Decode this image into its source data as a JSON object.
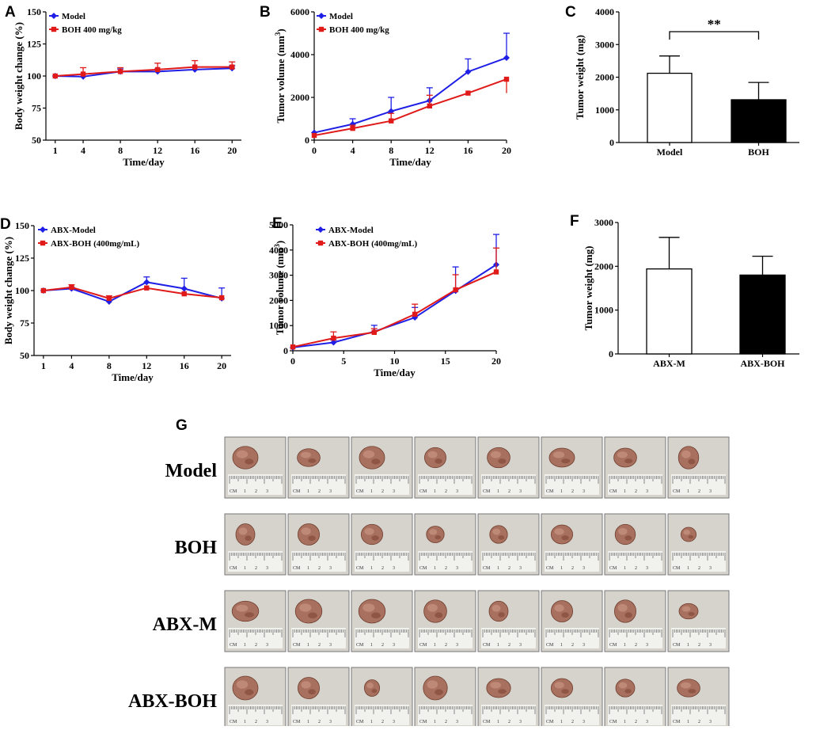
{
  "colors": {
    "model": "#1f1fe6",
    "treat": "#e01919",
    "axis": "#000000",
    "bar_model": "#ffffff",
    "bar_treat": "#000000",
    "photo_bg": "#d6d3cc",
    "photo_border": "#777777",
    "tumor": "#a8705e",
    "ruler": "#f1f1ee"
  },
  "chart_data": [
    {
      "id": "A",
      "letter": "A",
      "type": "line",
      "xlabel": "Time/day",
      "ylabel": "Body weight change (%)",
      "x": [
        1,
        4,
        8,
        12,
        16,
        20
      ],
      "xticks": [
        1,
        4,
        8,
        12,
        16,
        20
      ],
      "xlim": [
        0,
        21
      ],
      "ylim": [
        50,
        150
      ],
      "yticks": [
        50,
        75,
        100,
        125,
        150
      ],
      "series": [
        {
          "name": "Model",
          "color": "#1f1fe6",
          "marker": "diamond",
          "values": [
            100,
            99.5,
            103.5,
            103.5,
            105,
            106
          ],
          "err": [
            0,
            2,
            2,
            2,
            2,
            2
          ]
        },
        {
          "name": "BOH 400 mg/kg",
          "color": "#e01919",
          "marker": "square",
          "values": [
            100,
            101.5,
            103.5,
            105,
            107,
            107
          ],
          "err": [
            0,
            5,
            3,
            5,
            5,
            4
          ]
        }
      ]
    },
    {
      "id": "B",
      "letter": "B",
      "type": "line",
      "xlabel": "Time/day",
      "ylabel": "Tumor volume (mm3)",
      "x": [
        0,
        4,
        8,
        12,
        16,
        20
      ],
      "xticks": [
        0,
        4,
        8,
        12,
        16,
        20
      ],
      "xlim": [
        0,
        20
      ],
      "ylim": [
        0,
        6000
      ],
      "yticks": [
        0,
        2000,
        4000,
        6000
      ],
      "series": [
        {
          "name": "Model",
          "color": "#1f1fe6",
          "marker": "diamond",
          "values": [
            350,
            750,
            1350,
            1850,
            3200,
            3850
          ],
          "err": [
            0,
            250,
            650,
            600,
            600,
            1150
          ]
        },
        {
          "name": "BOH 400 mg/kg",
          "color": "#e01919",
          "marker": "square",
          "values": [
            220,
            550,
            900,
            1600,
            2200,
            2850
          ],
          "err": [
            0,
            150,
            350,
            500,
            0,
            0
          ],
          "err_down": [
            0,
            0,
            0,
            0,
            0,
            650
          ]
        }
      ]
    },
    {
      "id": "C",
      "letter": "C",
      "type": "bar",
      "xlabel": "",
      "ylabel": "Tumor weight (mg)",
      "categories": [
        "Model",
        "BOH"
      ],
      "values": [
        2120,
        1310
      ],
      "err": [
        530,
        530
      ],
      "ylim": [
        0,
        4000
      ],
      "yticks": [
        0,
        1000,
        2000,
        3000,
        4000
      ],
      "annotation": "**"
    },
    {
      "id": "D",
      "letter": "D",
      "type": "line",
      "xlabel": "Time/day",
      "ylabel": "Body weight change (%)",
      "x": [
        1,
        4,
        8,
        12,
        16,
        20
      ],
      "xticks": [
        1,
        4,
        8,
        12,
        16,
        20
      ],
      "xlim": [
        0,
        21
      ],
      "ylim": [
        50,
        150
      ],
      "yticks": [
        50,
        75,
        100,
        125,
        150
      ],
      "series": [
        {
          "name": "ABX-Model",
          "color": "#1f1fe6",
          "marker": "diamond",
          "values": [
            100,
            101.5,
            91.5,
            106.5,
            101.5,
            94
          ],
          "err": [
            0,
            1,
            1,
            4,
            8,
            8
          ]
        },
        {
          "name": "ABX-BOH (400mg/mL)",
          "color": "#e01919",
          "marker": "square",
          "values": [
            100,
            102.5,
            94,
            102,
            97.5,
            94.5
          ],
          "err": [
            0,
            2,
            2,
            0,
            0,
            0
          ]
        }
      ]
    },
    {
      "id": "E",
      "letter": "E",
      "type": "line",
      "xlabel": "Time/day",
      "ylabel": "Tumor volume (mm3)",
      "x": [
        0,
        4,
        8,
        12,
        16,
        20
      ],
      "xticks": [
        0,
        5,
        10,
        15,
        20
      ],
      "xlim": [
        0,
        20
      ],
      "ylim": [
        0,
        5000
      ],
      "yticks": [
        0,
        1000,
        2000,
        3000,
        4000,
        5000
      ],
      "series": [
        {
          "name": "ABX-Model",
          "color": "#1f1fe6",
          "marker": "diamond",
          "values": [
            130,
            330,
            760,
            1320,
            2380,
            3420
          ],
          "err": [
            0,
            100,
            250,
            400,
            950,
            1200
          ]
        },
        {
          "name": "ABX-BOH (400mg/mL)",
          "color": "#e01919",
          "marker": "square",
          "values": [
            150,
            500,
            730,
            1450,
            2420,
            3130
          ],
          "err": [
            0,
            250,
            150,
            400,
            600,
            950
          ]
        }
      ]
    },
    {
      "id": "F",
      "letter": "F",
      "type": "bar",
      "xlabel": "",
      "ylabel": "Tumor weight (mg)",
      "categories": [
        "ABX-M",
        "ABX-BOH"
      ],
      "values": [
        1940,
        1800
      ],
      "err": [
        720,
        430
      ],
      "ylim": [
        0,
        3000
      ],
      "yticks": [
        0,
        1000,
        2000,
        3000
      ]
    }
  ],
  "photos": {
    "letter": "G",
    "rows": [
      {
        "label": "Model",
        "tumors": [
          [
            1.0,
            0.95
          ],
          [
            0.9,
            0.75
          ],
          [
            1.0,
            0.95
          ],
          [
            0.85,
            0.85
          ],
          [
            0.9,
            0.85
          ],
          [
            1.0,
            0.8
          ],
          [
            0.9,
            0.8
          ],
          [
            0.8,
            0.95
          ]
        ]
      },
      {
        "label": "BOH",
        "tumors": [
          [
            0.75,
            0.9
          ],
          [
            0.85,
            0.9
          ],
          [
            0.85,
            0.85
          ],
          [
            0.7,
            0.7
          ],
          [
            0.7,
            0.75
          ],
          [
            0.85,
            0.8
          ],
          [
            0.8,
            0.85
          ],
          [
            0.6,
            0.6
          ]
        ]
      },
      {
        "label": "ABX-M",
        "tumors": [
          [
            1.05,
            0.85
          ],
          [
            1.05,
            1.0
          ],
          [
            1.05,
            1.0
          ],
          [
            0.9,
            0.95
          ],
          [
            0.75,
            0.85
          ],
          [
            0.85,
            0.9
          ],
          [
            0.85,
            0.95
          ],
          [
            0.75,
            0.65
          ]
        ]
      },
      {
        "label": "ABX-BOH",
        "tumors": [
          [
            1.0,
            1.0
          ],
          [
            0.85,
            0.9
          ],
          [
            0.6,
            0.7
          ],
          [
            0.95,
            1.0
          ],
          [
            0.95,
            0.8
          ],
          [
            0.85,
            0.8
          ],
          [
            0.75,
            0.75
          ],
          [
            0.9,
            0.75
          ]
        ]
      }
    ],
    "ruler_label": "CM",
    "ruler_numbers": [
      "1",
      "2",
      "3"
    ]
  }
}
